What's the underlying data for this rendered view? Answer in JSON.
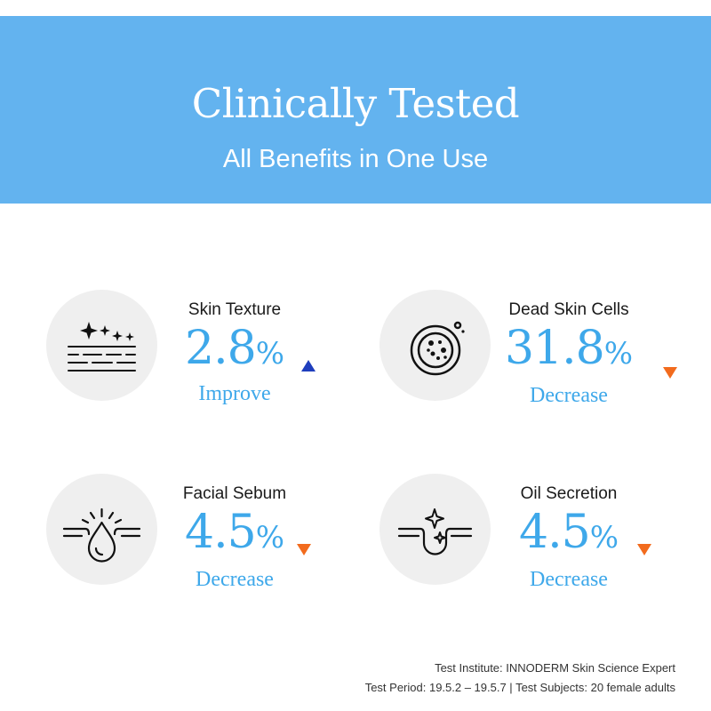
{
  "header": {
    "title": "Clinically Tested",
    "subtitle": "All Benefits in One Use"
  },
  "colors": {
    "banner": "#63b3ef",
    "value": "#3ea8ea",
    "increase_arrow": "#1f3ebd",
    "decrease_arrow": "#f26b1d"
  },
  "benefits": [
    {
      "label": "Skin Texture",
      "value": "2.8",
      "unit": "%",
      "status": "Improve",
      "direction": "up",
      "icon": "skin-texture-sparkle-icon"
    },
    {
      "label": "Dead Skin Cells",
      "value": "31.8",
      "unit": "%",
      "status": "Decrease",
      "direction": "down",
      "icon": "dead-skin-cells-icon"
    },
    {
      "label": "Facial Sebum",
      "value": "4.5",
      "unit": "%",
      "status": "Decrease",
      "direction": "down",
      "icon": "sebum-drop-icon"
    },
    {
      "label": "Oil Secretion",
      "value": "4.5",
      "unit": "%",
      "status": "Decrease",
      "direction": "down",
      "icon": "oil-secretion-pore-icon"
    }
  ],
  "footer": {
    "institute": "Test Institute: INNODERM Skin Science Expert",
    "period": "Test Period: 19.5.2 – 19.5.7 | Test Subjects: 20 female adults"
  }
}
